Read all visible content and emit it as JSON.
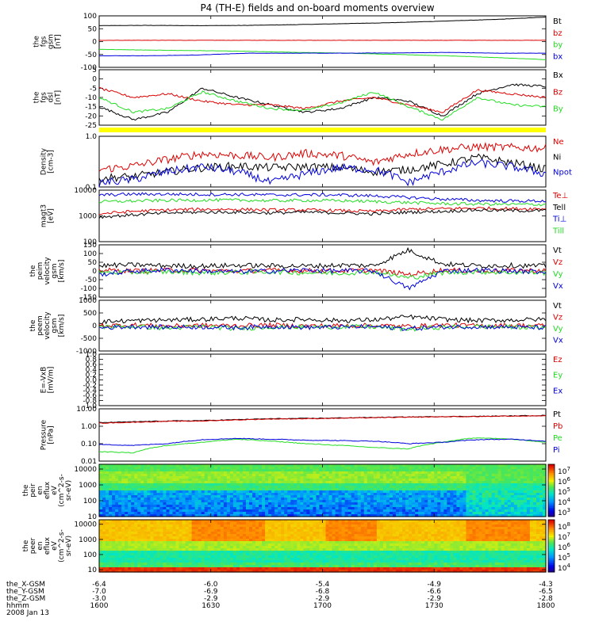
{
  "title": "P4 (TH-E) fields and on-board moments overview",
  "date": "2008 Jan 13",
  "colors": {
    "black": "#000000",
    "red": "#dd0000",
    "green": "#22dd22",
    "blue": "#0000dd",
    "yellow": "#ffff00"
  },
  "chart_data": [
    {
      "id": "fgs_gsm",
      "type": "line",
      "ylabel": [
        "the",
        "fgs",
        "gsm",
        "[nT]"
      ],
      "ylim": [
        -100,
        100
      ],
      "yticks": [
        "100",
        "50",
        "0",
        "-50",
        "-100"
      ],
      "ytick_values": [
        100,
        50,
        0,
        -50,
        -100
      ],
      "series": [
        {
          "name": "Bt",
          "color": "#000000",
          "values": [
            62,
            63,
            62,
            63,
            66,
            70,
            74,
            80,
            86,
            95
          ]
        },
        {
          "name": "bz",
          "color": "#dd0000",
          "values": [
            5,
            5,
            5,
            5,
            5,
            5,
            5,
            5,
            5,
            5
          ]
        },
        {
          "name": "by",
          "color": "#22dd22",
          "values": [
            -30,
            -33,
            -35,
            -38,
            -42,
            -45,
            -50,
            -55,
            -62,
            -70
          ]
        },
        {
          "name": "bx",
          "color": "#0000dd",
          "values": [
            -55,
            -55,
            -52,
            -45,
            -45,
            -45,
            -44,
            -42,
            -45,
            -45
          ]
        }
      ]
    },
    {
      "id": "fgs_dsl",
      "type": "line",
      "ylabel": [
        "the",
        "fgs",
        "dsl",
        "[nT]"
      ],
      "ylim": [
        -25,
        5
      ],
      "yticks": [
        "5",
        "0",
        "-5",
        "-10",
        "-15",
        "-20",
        "-25"
      ],
      "ytick_values": [
        5,
        0,
        -5,
        -10,
        -15,
        -20,
        -25
      ],
      "series": [
        {
          "name": "Bx",
          "color": "#000000",
          "values": [
            -15,
            -22,
            -18,
            -5,
            -10,
            -14,
            -18,
            -16,
            -10,
            -12,
            -20,
            -8,
            -3,
            -4
          ]
        },
        {
          "name": "Bz",
          "color": "#dd0000",
          "values": [
            -5,
            -10,
            -8,
            -12,
            -14,
            -14,
            -16,
            -12,
            -10,
            -14,
            -18,
            -6,
            -8,
            -10
          ]
        },
        {
          "name": "By",
          "color": "#22dd22",
          "values": [
            -10,
            -18,
            -16,
            -7,
            -12,
            -16,
            -17,
            -13,
            -7,
            -15,
            -22,
            -10,
            -14,
            -15
          ]
        }
      ]
    },
    {
      "id": "density",
      "type": "line",
      "log": true,
      "ylabel": [
        "Density",
        "[cm-3]"
      ],
      "ylim": [
        0.1,
        1.0
      ],
      "yticks": [
        "1.0",
        "0.1"
      ],
      "ytick_values": [
        1.0,
        0.1
      ],
      "series": [
        {
          "name": "Ne",
          "color": "#dd0000",
          "values": [
            0.22,
            0.26,
            0.35,
            0.45,
            0.42,
            0.38,
            0.46,
            0.42,
            0.3,
            0.45,
            0.55,
            0.62,
            0.6,
            0.58
          ]
        },
        {
          "name": "Ni",
          "color": "#000000",
          "values": [
            0.15,
            0.16,
            0.2,
            0.24,
            0.26,
            0.24,
            0.25,
            0.24,
            0.2,
            0.22,
            0.28,
            0.38,
            0.3,
            0.22
          ]
        },
        {
          "name": "Npot",
          "color": "#0000dd",
          "values": [
            0.12,
            0.14,
            0.2,
            0.25,
            0.2,
            0.12,
            0.18,
            0.24,
            0.22,
            0.12,
            0.2,
            0.3,
            0.25,
            0.18
          ]
        }
      ]
    },
    {
      "id": "temperature",
      "type": "line",
      "log": true,
      "ylabel": [
        "magt3",
        "[eV]"
      ],
      "ylim": [
        100,
        10000
      ],
      "yticks": [
        "10000",
        "1000",
        "100"
      ],
      "ytick_values": [
        10000,
        1000,
        100
      ],
      "series": [
        {
          "name": "Te⊥",
          "color": "#dd0000",
          "values": [
            1200,
            1500,
            1700,
            1800,
            1800,
            1700,
            1700,
            1600,
            1500,
            1800,
            1900,
            2000,
            1900,
            1900
          ]
        },
        {
          "name": "Tell",
          "color": "#000000",
          "values": [
            900,
            1100,
            1300,
            1400,
            1400,
            1300,
            1400,
            1300,
            1200,
            1400,
            1500,
            1700,
            1600,
            1600
          ]
        },
        {
          "name": "Ti⊥",
          "color": "#0000dd",
          "values": [
            6500,
            7000,
            7000,
            6800,
            6800,
            6500,
            6600,
            6500,
            6000,
            5200,
            4500,
            4000,
            3800,
            3800
          ]
        },
        {
          "name": "Till",
          "color": "#22dd22",
          "values": [
            3500,
            3800,
            4000,
            4100,
            4100,
            3900,
            4000,
            3900,
            3600,
            3300,
            3000,
            2900,
            2800,
            2800
          ]
        }
      ]
    },
    {
      "id": "peim_velocity",
      "type": "line",
      "ylabel": [
        "the",
        "peim",
        "velocity",
        "gsm",
        "[km/s]"
      ],
      "ylim": [
        -150,
        150
      ],
      "yticks": [
        "150",
        "100",
        "50",
        "0",
        "-50",
        "-100",
        "-150"
      ],
      "ytick_values": [
        150,
        100,
        50,
        0,
        -50,
        -100,
        -150
      ],
      "series": [
        {
          "name": "Vt",
          "color": "#000000",
          "values": [
            30,
            35,
            30,
            28,
            32,
            30,
            28,
            33,
            30,
            120,
            40,
            30,
            32,
            28
          ]
        },
        {
          "name": "Vz",
          "color": "#dd0000",
          "values": [
            5,
            0,
            5,
            2,
            0,
            3,
            2,
            0,
            5,
            -20,
            5,
            0,
            2,
            3
          ]
        },
        {
          "name": "Vy",
          "color": "#22dd22",
          "values": [
            -10,
            -8,
            -5,
            -10,
            -8,
            -5,
            -10,
            -12,
            -5,
            -40,
            -10,
            -5,
            -8,
            -10
          ]
        },
        {
          "name": "Vx",
          "color": "#0000dd",
          "values": [
            -20,
            0,
            5,
            0,
            -5,
            0,
            5,
            0,
            0,
            -100,
            0,
            5,
            0,
            -5
          ]
        }
      ]
    },
    {
      "id": "peem_velocity",
      "type": "line",
      "ylabel": [
        "the",
        "peem",
        "velocity",
        "gsm",
        "[km/s]"
      ],
      "ylim": [
        -1000,
        1000
      ],
      "yticks": [
        "1000",
        "500",
        "0",
        "-500",
        "-1000"
      ],
      "ytick_values": [
        1000,
        500,
        0,
        -500,
        -1000
      ],
      "series": [
        {
          "name": "Vt",
          "color": "#000000",
          "values": [
            150,
            200,
            220,
            250,
            300,
            220,
            250,
            200,
            230,
            350,
            250,
            200,
            220,
            250
          ]
        },
        {
          "name": "Vz",
          "color": "#dd0000",
          "values": [
            0,
            30,
            -20,
            10,
            0,
            20,
            -10,
            0,
            10,
            -30,
            20,
            0,
            10,
            0
          ]
        },
        {
          "name": "Vy",
          "color": "#22dd22",
          "values": [
            -50,
            -30,
            -100,
            -40,
            -120,
            -50,
            -60,
            -40,
            -50,
            -150,
            -60,
            -40,
            -50,
            -80
          ]
        },
        {
          "name": "Vx",
          "color": "#0000dd",
          "values": [
            -80,
            -40,
            -60,
            -50,
            -80,
            -30,
            -70,
            -60,
            -40,
            -120,
            -50,
            -40,
            -60,
            -80
          ]
        }
      ]
    },
    {
      "id": "efield",
      "type": "line",
      "ylabel": [
        "E=-VxB",
        "[mV/m]"
      ],
      "ylim": [
        -1.0,
        1.0
      ],
      "yticks": [
        "1.0",
        "0.8",
        "0.6",
        "0.4",
        "0.2",
        "0.0",
        "-0.2",
        "-0.4",
        "-0.6",
        "-0.8",
        "-1.0"
      ],
      "ytick_values": [
        1.0,
        0.8,
        0.6,
        0.4,
        0.2,
        0.0,
        -0.2,
        -0.4,
        -0.6,
        -0.8,
        -1.0
      ],
      "series": [
        {
          "name": "Ez",
          "color": "#dd0000",
          "values": []
        },
        {
          "name": "Ey",
          "color": "#22dd22",
          "values": []
        },
        {
          "name": "Ex",
          "color": "#0000dd",
          "values": []
        }
      ]
    },
    {
      "id": "pressure",
      "type": "line",
      "log": true,
      "ylabel": [
        "Pressure",
        "[nPa]"
      ],
      "ylim": [
        0.01,
        10.0
      ],
      "yticks": [
        "10.00",
        "1.00",
        "0.10",
        "0.01"
      ],
      "ytick_values": [
        10.0,
        1.0,
        0.1,
        0.01
      ],
      "series": [
        {
          "name": "Pt",
          "color": "#000000",
          "values": [
            1.6,
            1.8,
            2.0,
            2.1,
            2.4,
            2.7,
            2.8,
            3.0,
            3.2,
            3.4,
            3.6,
            3.7,
            3.9,
            4.2
          ]
        },
        {
          "name": "Pb",
          "color": "#dd0000",
          "values": [
            1.5,
            1.7,
            1.9,
            2.0,
            2.3,
            2.6,
            2.7,
            2.9,
            3.1,
            3.3,
            3.5,
            3.6,
            3.8,
            4.0
          ]
        },
        {
          "name": "Pe",
          "color": "#22dd22",
          "values": [
            0.035,
            0.03,
            0.08,
            0.12,
            0.18,
            0.14,
            0.1,
            0.08,
            0.06,
            0.05,
            0.12,
            0.22,
            0.18,
            0.12
          ]
        },
        {
          "name": "Pi",
          "color": "#0000dd",
          "values": [
            0.09,
            0.08,
            0.1,
            0.17,
            0.2,
            0.18,
            0.16,
            0.15,
            0.14,
            0.1,
            0.12,
            0.17,
            0.18,
            0.14
          ]
        }
      ]
    },
    {
      "id": "peir_spectrogram",
      "type": "heatmap",
      "log": true,
      "ylabel": [
        "the",
        "peir",
        "en",
        "eflux",
        "eV",
        "(cm^2-s-",
        "sr-eV)"
      ],
      "ylim": [
        10,
        20000
      ],
      "yticks": [
        "10000",
        "1000",
        "100",
        "10"
      ],
      "ytick_values": [
        10000,
        1000,
        100,
        10
      ],
      "colorbar": {
        "ticks": [
          "10^7",
          "10^6",
          "10^5",
          "10^4",
          "10^3"
        ],
        "range": [
          3,
          7.3
        ]
      }
    },
    {
      "id": "peer_spectrogram",
      "type": "heatmap",
      "log": true,
      "ylabel": [
        "the",
        "peer",
        "en",
        "eflux",
        "eV",
        "(cm^2-s-",
        "sr-eV)"
      ],
      "ylim": [
        7,
        20000
      ],
      "yticks": [
        "10000",
        "1000",
        "100",
        "10"
      ],
      "ytick_values": [
        10000,
        1000,
        100,
        10
      ],
      "colorbar": {
        "ticks": [
          "10^8",
          "10^7",
          "10^6",
          "10^5",
          "10^4"
        ],
        "range": [
          3.8,
          8.3
        ]
      }
    }
  ],
  "x_axis": {
    "tick_labels": [
      "1600",
      "1630",
      "1700",
      "1730",
      "1800"
    ],
    "rows": [
      {
        "label": "the_X-GSM",
        "values": [
          "-6.4",
          "-6.0",
          "-5.4",
          "-4.9",
          "-4.3"
        ]
      },
      {
        "label": "the_Y-GSM",
        "values": [
          "-7.0",
          "-6.9",
          "-6.8",
          "-6.6",
          "-6.5"
        ]
      },
      {
        "label": "the_Z-GSM",
        "values": [
          "-3.0",
          "-2.9",
          "-2.9",
          "-2.9",
          "-2.8"
        ]
      },
      {
        "label": "hhmm",
        "values": [
          "1600",
          "1630",
          "1700",
          "1730",
          "1800"
        ]
      }
    ]
  }
}
